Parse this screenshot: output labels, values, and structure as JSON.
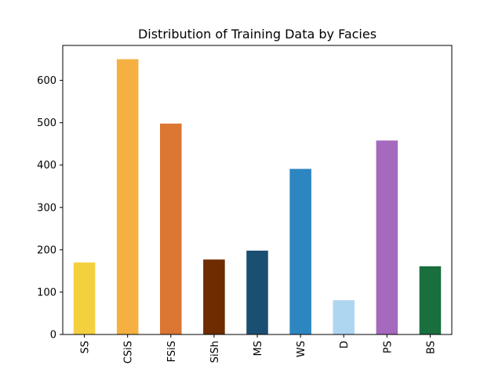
{
  "chart_data": {
    "type": "bar",
    "title": "Distribution of Training Data by Facies",
    "xlabel": "",
    "ylabel": "",
    "categories": [
      "SS",
      "CSiS",
      "FSiS",
      "SiSh",
      "MS",
      "WS",
      "D",
      "PS",
      "BS"
    ],
    "values": [
      170,
      650,
      498,
      177,
      198,
      391,
      81,
      458,
      161
    ],
    "colors": [
      "#F4D03F",
      "#F5B041",
      "#DC7633",
      "#6E2C00",
      "#1B4F72",
      "#2E86C1",
      "#AED6F1",
      "#A569BD",
      "#196F3D"
    ],
    "ylim": [
      0,
      682.5
    ],
    "yticks": [
      0,
      100,
      200,
      300,
      400,
      500,
      600
    ],
    "grid": false,
    "legend": "none"
  }
}
